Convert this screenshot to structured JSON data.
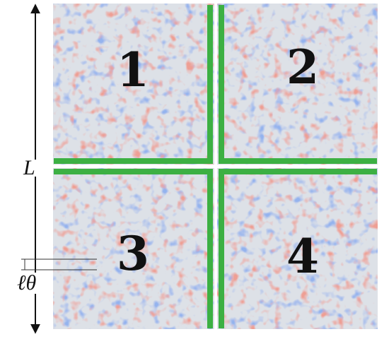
{
  "panels": [
    {
      "label": "1"
    },
    {
      "label": "2"
    },
    {
      "label": "3"
    },
    {
      "label": "4"
    }
  ],
  "axis_label": "L",
  "scale_label": "ℓθ"
}
